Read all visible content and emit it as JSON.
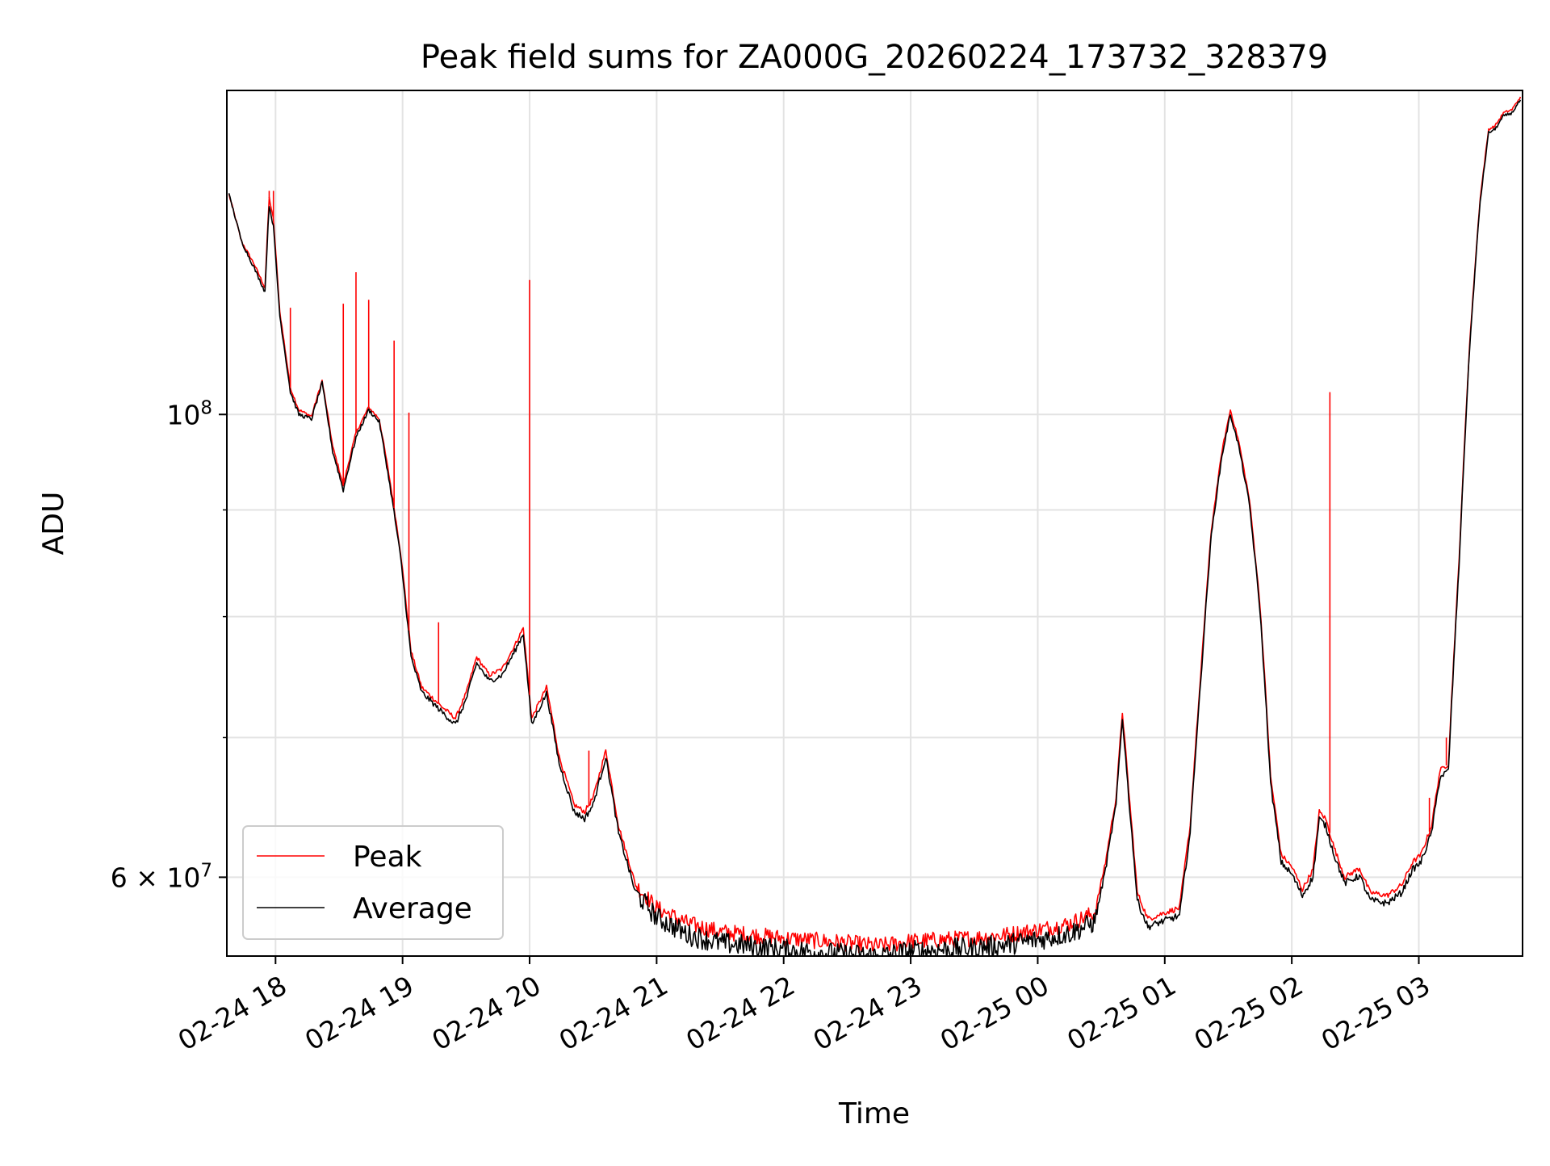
{
  "chart_data": {
    "type": "line",
    "title": "Peak field sums for ZA000G_20260224_173732_328379",
    "xlabel": "Time",
    "ylabel": "ADU",
    "yscale": "log",
    "grid": true,
    "legend_position": "lower-left",
    "x_tick_labels": [
      "02-24 18",
      "02-24 19",
      "02-24 20",
      "02-24 21",
      "02-24 22",
      "02-24 23",
      "02-25 00",
      "02-25 01",
      "02-25 02",
      "02-25 03"
    ],
    "y_tick_labels": [
      {
        "value": 60000000,
        "mantissa": "6",
        "exponent": "7"
      },
      {
        "value": 100000000,
        "mantissa": "10",
        "exponent": "8"
      }
    ],
    "x_range": [
      "2026-02-24 17:37",
      "2026-02-25 03:49"
    ],
    "y_range": [
      55000000,
      143000000
    ],
    "series": [
      {
        "name": "Peak",
        "color": "#ff0000",
        "points": [
          [
            "17:38",
            127.5
          ],
          [
            "17:44",
            121.0
          ],
          [
            "17:50",
            118.0
          ],
          [
            "17:55",
            115.0
          ],
          [
            "17:57",
            127.0
          ],
          [
            "17:59",
            124.0
          ],
          [
            "18:02",
            112.0
          ],
          [
            "18:07",
            103.0
          ],
          [
            "18:11",
            100.5
          ],
          [
            "18:17",
            99.8
          ],
          [
            "18:22",
            103.8
          ],
          [
            "18:27",
            96.5
          ],
          [
            "18:32",
            92.5
          ],
          [
            "18:38",
            98.0
          ],
          [
            "18:44",
            100.8
          ],
          [
            "18:49",
            99.5
          ],
          [
            "18:54",
            93.0
          ],
          [
            "18:59",
            86.0
          ],
          [
            "19:04",
            77.0
          ],
          [
            "19:09",
            74.0
          ],
          [
            "19:18",
            72.5
          ],
          [
            "19:25",
            71.5
          ],
          [
            "19:30",
            73.5
          ],
          [
            "19:35",
            76.5
          ],
          [
            "19:41",
            75.0
          ],
          [
            "19:47",
            75.5
          ],
          [
            "19:53",
            77.5
          ],
          [
            "19:57",
            79.0
          ],
          [
            "20:01",
            71.5
          ],
          [
            "20:08",
            74.0
          ],
          [
            "20:14",
            68.5
          ],
          [
            "20:21",
            65.0
          ],
          [
            "20:26",
            64.5
          ],
          [
            "20:30",
            65.5
          ],
          [
            "20:36",
            69.0
          ],
          [
            "20:42",
            63.5
          ],
          [
            "20:50",
            59.5
          ],
          [
            "21:00",
            58.0
          ],
          [
            "21:15",
            57.0
          ],
          [
            "21:30",
            56.5
          ],
          [
            "21:45",
            56.3
          ],
          [
            "22:00",
            56.1
          ],
          [
            "22:30",
            55.8
          ],
          [
            "22:45",
            55.6
          ],
          [
            "23:00",
            55.9
          ],
          [
            "23:30",
            56.1
          ],
          [
            "23:45",
            56.3
          ],
          [
            "00:00",
            56.6
          ],
          [
            "00:15",
            57.0
          ],
          [
            "00:27",
            57.7
          ],
          [
            "00:32",
            61.0
          ],
          [
            "00:37",
            65.5
          ],
          [
            "00:40",
            72.0
          ],
          [
            "00:43",
            66.0
          ],
          [
            "00:47",
            59.0
          ],
          [
            "00:52",
            57.3
          ],
          [
            "01:00",
            57.7
          ],
          [
            "01:07",
            58.0
          ],
          [
            "01:12",
            63.5
          ],
          [
            "01:17",
            75.0
          ],
          [
            "01:22",
            88.0
          ],
          [
            "01:27",
            96.0
          ],
          [
            "01:31",
            100.5
          ],
          [
            "01:35",
            97.0
          ],
          [
            "01:40",
            91.0
          ],
          [
            "01:45",
            81.0
          ],
          [
            "01:50",
            67.0
          ],
          [
            "01:55",
            61.5
          ],
          [
            "02:00",
            60.7
          ],
          [
            "02:05",
            59.2
          ],
          [
            "02:10",
            60.5
          ],
          [
            "02:13",
            64.5
          ],
          [
            "02:16",
            64.0
          ],
          [
            "02:20",
            62.0
          ],
          [
            "02:25",
            60.0
          ],
          [
            "02:32",
            60.6
          ],
          [
            "02:37",
            59.0
          ],
          [
            "02:45",
            58.8
          ],
          [
            "02:52",
            59.5
          ],
          [
            "02:57",
            61.0
          ],
          [
            "03:01",
            61.5
          ],
          [
            "03:06",
            63.5
          ],
          [
            "03:10",
            67.5
          ],
          [
            "03:14",
            68.0
          ],
          [
            "03:19",
            85.0
          ],
          [
            "03:24",
            108.0
          ],
          [
            "03:29",
            127.0
          ],
          [
            "03:33",
            137.0
          ],
          [
            "03:36",
            137.5
          ],
          [
            "03:40",
            139.5
          ],
          [
            "03:44",
            140.0
          ],
          [
            "03:48",
            142.0
          ]
        ]
      },
      {
        "name": "Average",
        "color": "#000000",
        "points": [
          [
            "17:38",
            127.5
          ],
          [
            "17:44",
            121.0
          ],
          [
            "17:50",
            117.5
          ],
          [
            "17:55",
            114.5
          ],
          [
            "17:57",
            126.0
          ],
          [
            "17:59",
            123.0
          ],
          [
            "18:02",
            111.5
          ],
          [
            "18:07",
            102.5
          ],
          [
            "18:11",
            100.0
          ],
          [
            "18:17",
            99.5
          ],
          [
            "18:22",
            103.5
          ],
          [
            "18:27",
            96.0
          ],
          [
            "18:32",
            92.0
          ],
          [
            "18:38",
            97.5
          ],
          [
            "18:44",
            100.5
          ],
          [
            "18:49",
            99.2
          ],
          [
            "18:54",
            92.5
          ],
          [
            "18:59",
            85.5
          ],
          [
            "19:04",
            76.5
          ],
          [
            "19:09",
            73.6
          ],
          [
            "19:18",
            72.1
          ],
          [
            "19:25",
            71.0
          ],
          [
            "19:30",
            73.0
          ],
          [
            "19:35",
            76.0
          ],
          [
            "19:41",
            74.5
          ],
          [
            "19:47",
            75.0
          ],
          [
            "19:53",
            77.0
          ],
          [
            "19:57",
            78.5
          ],
          [
            "20:01",
            71.0
          ],
          [
            "20:08",
            73.5
          ],
          [
            "20:14",
            68.0
          ],
          [
            "20:21",
            64.5
          ],
          [
            "20:26",
            64.0
          ],
          [
            "20:30",
            65.0
          ],
          [
            "20:36",
            68.5
          ],
          [
            "20:42",
            63.0
          ],
          [
            "20:50",
            59.0
          ],
          [
            "21:00",
            57.4
          ],
          [
            "21:15",
            56.3
          ],
          [
            "21:30",
            55.8
          ],
          [
            "21:45",
            55.6
          ],
          [
            "22:00",
            55.4
          ],
          [
            "22:30",
            55.1
          ],
          [
            "22:45",
            55.0
          ],
          [
            "23:00",
            55.3
          ],
          [
            "23:30",
            55.5
          ],
          [
            "23:45",
            55.7
          ],
          [
            "00:00",
            56.0
          ],
          [
            "00:15",
            56.4
          ],
          [
            "00:27",
            57.1
          ],
          [
            "00:32",
            60.5
          ],
          [
            "00:37",
            65.0
          ],
          [
            "00:40",
            71.5
          ],
          [
            "00:43",
            65.5
          ],
          [
            "00:47",
            58.5
          ],
          [
            "00:52",
            56.8
          ],
          [
            "01:00",
            57.2
          ],
          [
            "01:07",
            57.5
          ],
          [
            "01:12",
            63.0
          ],
          [
            "01:17",
            74.5
          ],
          [
            "01:22",
            87.5
          ],
          [
            "01:27",
            95.5
          ],
          [
            "01:31",
            100.0
          ],
          [
            "01:35",
            96.5
          ],
          [
            "01:40",
            90.5
          ],
          [
            "01:45",
            80.5
          ],
          [
            "01:50",
            66.5
          ],
          [
            "01:55",
            61.0
          ],
          [
            "02:00",
            60.2
          ],
          [
            "02:05",
            58.8
          ],
          [
            "02:10",
            60.0
          ],
          [
            "02:13",
            64.0
          ],
          [
            "02:16",
            63.5
          ],
          [
            "02:20",
            61.5
          ],
          [
            "02:25",
            59.6
          ],
          [
            "02:32",
            60.1
          ],
          [
            "02:37",
            58.5
          ],
          [
            "02:45",
            58.3
          ],
          [
            "02:52",
            59.0
          ],
          [
            "02:57",
            60.5
          ],
          [
            "03:01",
            61.0
          ],
          [
            "03:06",
            63.0
          ],
          [
            "03:10",
            67.0
          ],
          [
            "03:14",
            67.5
          ],
          [
            "03:19",
            84.5
          ],
          [
            "03:24",
            107.5
          ],
          [
            "03:29",
            126.5
          ],
          [
            "03:33",
            136.5
          ],
          [
            "03:36",
            137.0
          ],
          [
            "03:40",
            139.0
          ],
          [
            "03:44",
            139.5
          ],
          [
            "03:48",
            141.5
          ]
        ]
      }
    ],
    "peak_spikes": [
      [
        "17:57",
        128.0
      ],
      [
        "17:59",
        128.0
      ],
      [
        "18:07",
        112.5
      ],
      [
        "18:32",
        113.0
      ],
      [
        "18:38",
        117.0
      ],
      [
        "18:44",
        113.5
      ],
      [
        "18:56",
        108.5
      ],
      [
        "19:03",
        100.2
      ],
      [
        "19:17",
        79.5
      ],
      [
        "20:00",
        116.0
      ],
      [
        "20:28",
        69.0
      ],
      [
        "21:00",
        58.5
      ],
      [
        "02:18",
        102.5
      ],
      [
        "03:05",
        65.5
      ],
      [
        "03:13",
        70.0
      ]
    ],
    "y_unit_multiplier": 1000000
  }
}
